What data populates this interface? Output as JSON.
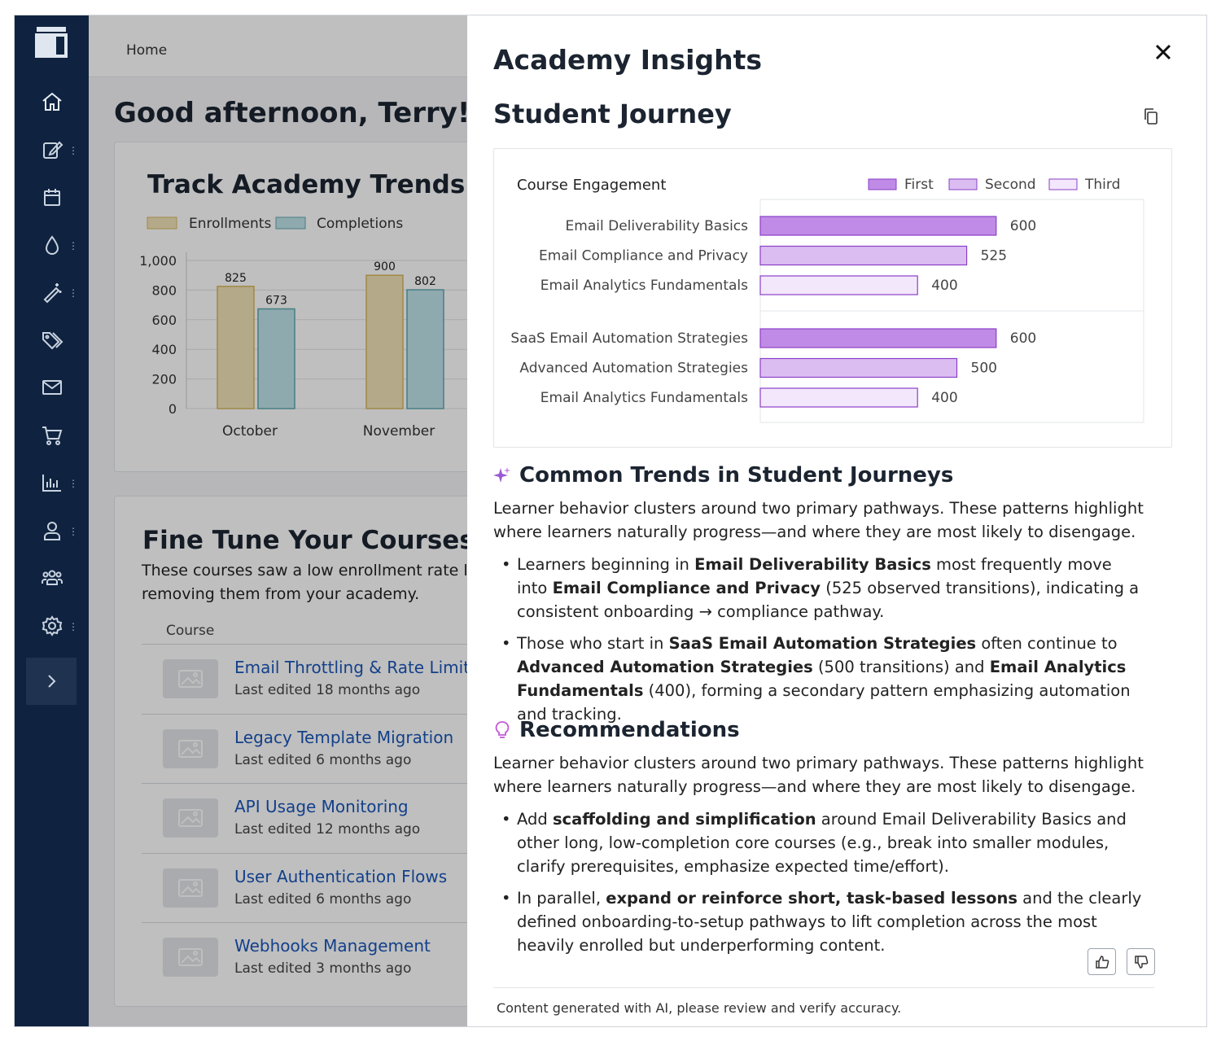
{
  "breadcrumb": "Home",
  "greeting": "Good afternoon, Terry!",
  "trends_card": {
    "title": "Track Academy Trends",
    "legend": [
      "Enrollments",
      "Completions"
    ],
    "colors": {
      "enrollments": "#f1e3b8",
      "enrollments_border": "#d8b65e",
      "completions": "#bfe3e8",
      "completions_border": "#5fa8b2"
    },
    "chart_data": {
      "type": "bar",
      "categories": [
        "October",
        "November"
      ],
      "series": [
        {
          "name": "Enrollments",
          "values": [
            825,
            900
          ]
        },
        {
          "name": "Completions",
          "values": [
            673,
            802
          ]
        }
      ],
      "yticks": [
        "1,000",
        "800",
        "600",
        "400",
        "200",
        "0"
      ],
      "ylim": [
        0,
        1000
      ]
    }
  },
  "courses_card": {
    "title": "Fine Tune Your Courses",
    "subtext_line1": "These courses saw a low enrollment rate las",
    "subtext_line2": "removing them from your academy.",
    "column_header": "Course",
    "rows": [
      {
        "name": "Email Throttling & Rate Limits",
        "meta": "Last edited 18 months ago"
      },
      {
        "name": "Legacy Template Migration",
        "meta": "Last edited 6 months ago"
      },
      {
        "name": "API Usage Monitoring",
        "meta": "Last edited 12 months ago"
      },
      {
        "name": "User Authentication Flows",
        "meta": "Last edited 6 months ago"
      },
      {
        "name": "Webhooks Management",
        "meta": "Last edited 3 months ago"
      }
    ]
  },
  "panel": {
    "title": "Academy Insights",
    "section_title": "Student Journey",
    "chart_data": {
      "type": "bar",
      "orientation": "horizontal",
      "title": "Course Engagement",
      "legend": [
        "First",
        "Second",
        "Third"
      ],
      "colors": {
        "First": "#c08be6",
        "Second": "#dcbdf2",
        "Third": "#f3e7fb",
        "border": "#8a3fc7"
      },
      "groups": [
        {
          "bars": [
            {
              "label": "Email Deliverability Basics",
              "series": "First",
              "value": 600
            },
            {
              "label": "Email Compliance and Privacy",
              "series": "Second",
              "value": 525
            },
            {
              "label": "Email Analytics Fundamentals",
              "series": "Third",
              "value": 400
            }
          ]
        },
        {
          "bars": [
            {
              "label": "SaaS Email Automation Strategies",
              "series": "First",
              "value": 600
            },
            {
              "label": "Advanced Automation Strategies",
              "series": "Second",
              "value": 500
            },
            {
              "label": "Email Analytics Fundamentals",
              "series": "Third",
              "value": 400
            }
          ]
        }
      ],
      "xlim": [
        0,
        1000
      ]
    },
    "trends": {
      "heading": "Common Trends in Student Journeys",
      "intro": "Learner behavior clusters around two primary pathways. These patterns highlight where learners naturally progress—and where they are most likely to disengage.",
      "b1_t1": "Learners beginning in ",
      "b1_s1": "Email Deliverability Basics",
      "b1_t2": " most frequently move into ",
      "b1_s2": "Email Compliance and Privacy",
      "b1_t3": " (525 observed transitions), indicating a consistent onboarding → compliance pathway.",
      "b2_t1": "Those who start in ",
      "b2_s1": "SaaS Email Automation Strategies",
      "b2_t2": " often continue to ",
      "b2_s2": "Advanced Automation Strategies",
      "b2_t3": " (500 transitions) and ",
      "b2_s3": "Email Analytics Fundamentals",
      "b2_t4": " (400), forming a secondary pattern emphasizing automation and tracking."
    },
    "recs": {
      "heading": "Recommendations",
      "intro": "Learner behavior clusters around two primary pathways. These patterns highlight where learners naturally progress—and where they are most likely to disengage.",
      "b1_t1": "Add ",
      "b1_s1": "scaffolding and simplification",
      "b1_t2": " around Email Deliverability Basics and other long, low-completion core courses (e.g., break into smaller modules, clarify prerequisites, emphasize expected time/effort).",
      "b2_t1": "In parallel, ",
      "b2_s1": "expand or reinforce short, task-based lessons",
      "b2_t2": " and the clearly defined onboarding-to-setup pathways to lift completion across the most heavily enrolled but underperforming content."
    },
    "footer_note": "Content generated with AI, please review and verify accuracy."
  }
}
